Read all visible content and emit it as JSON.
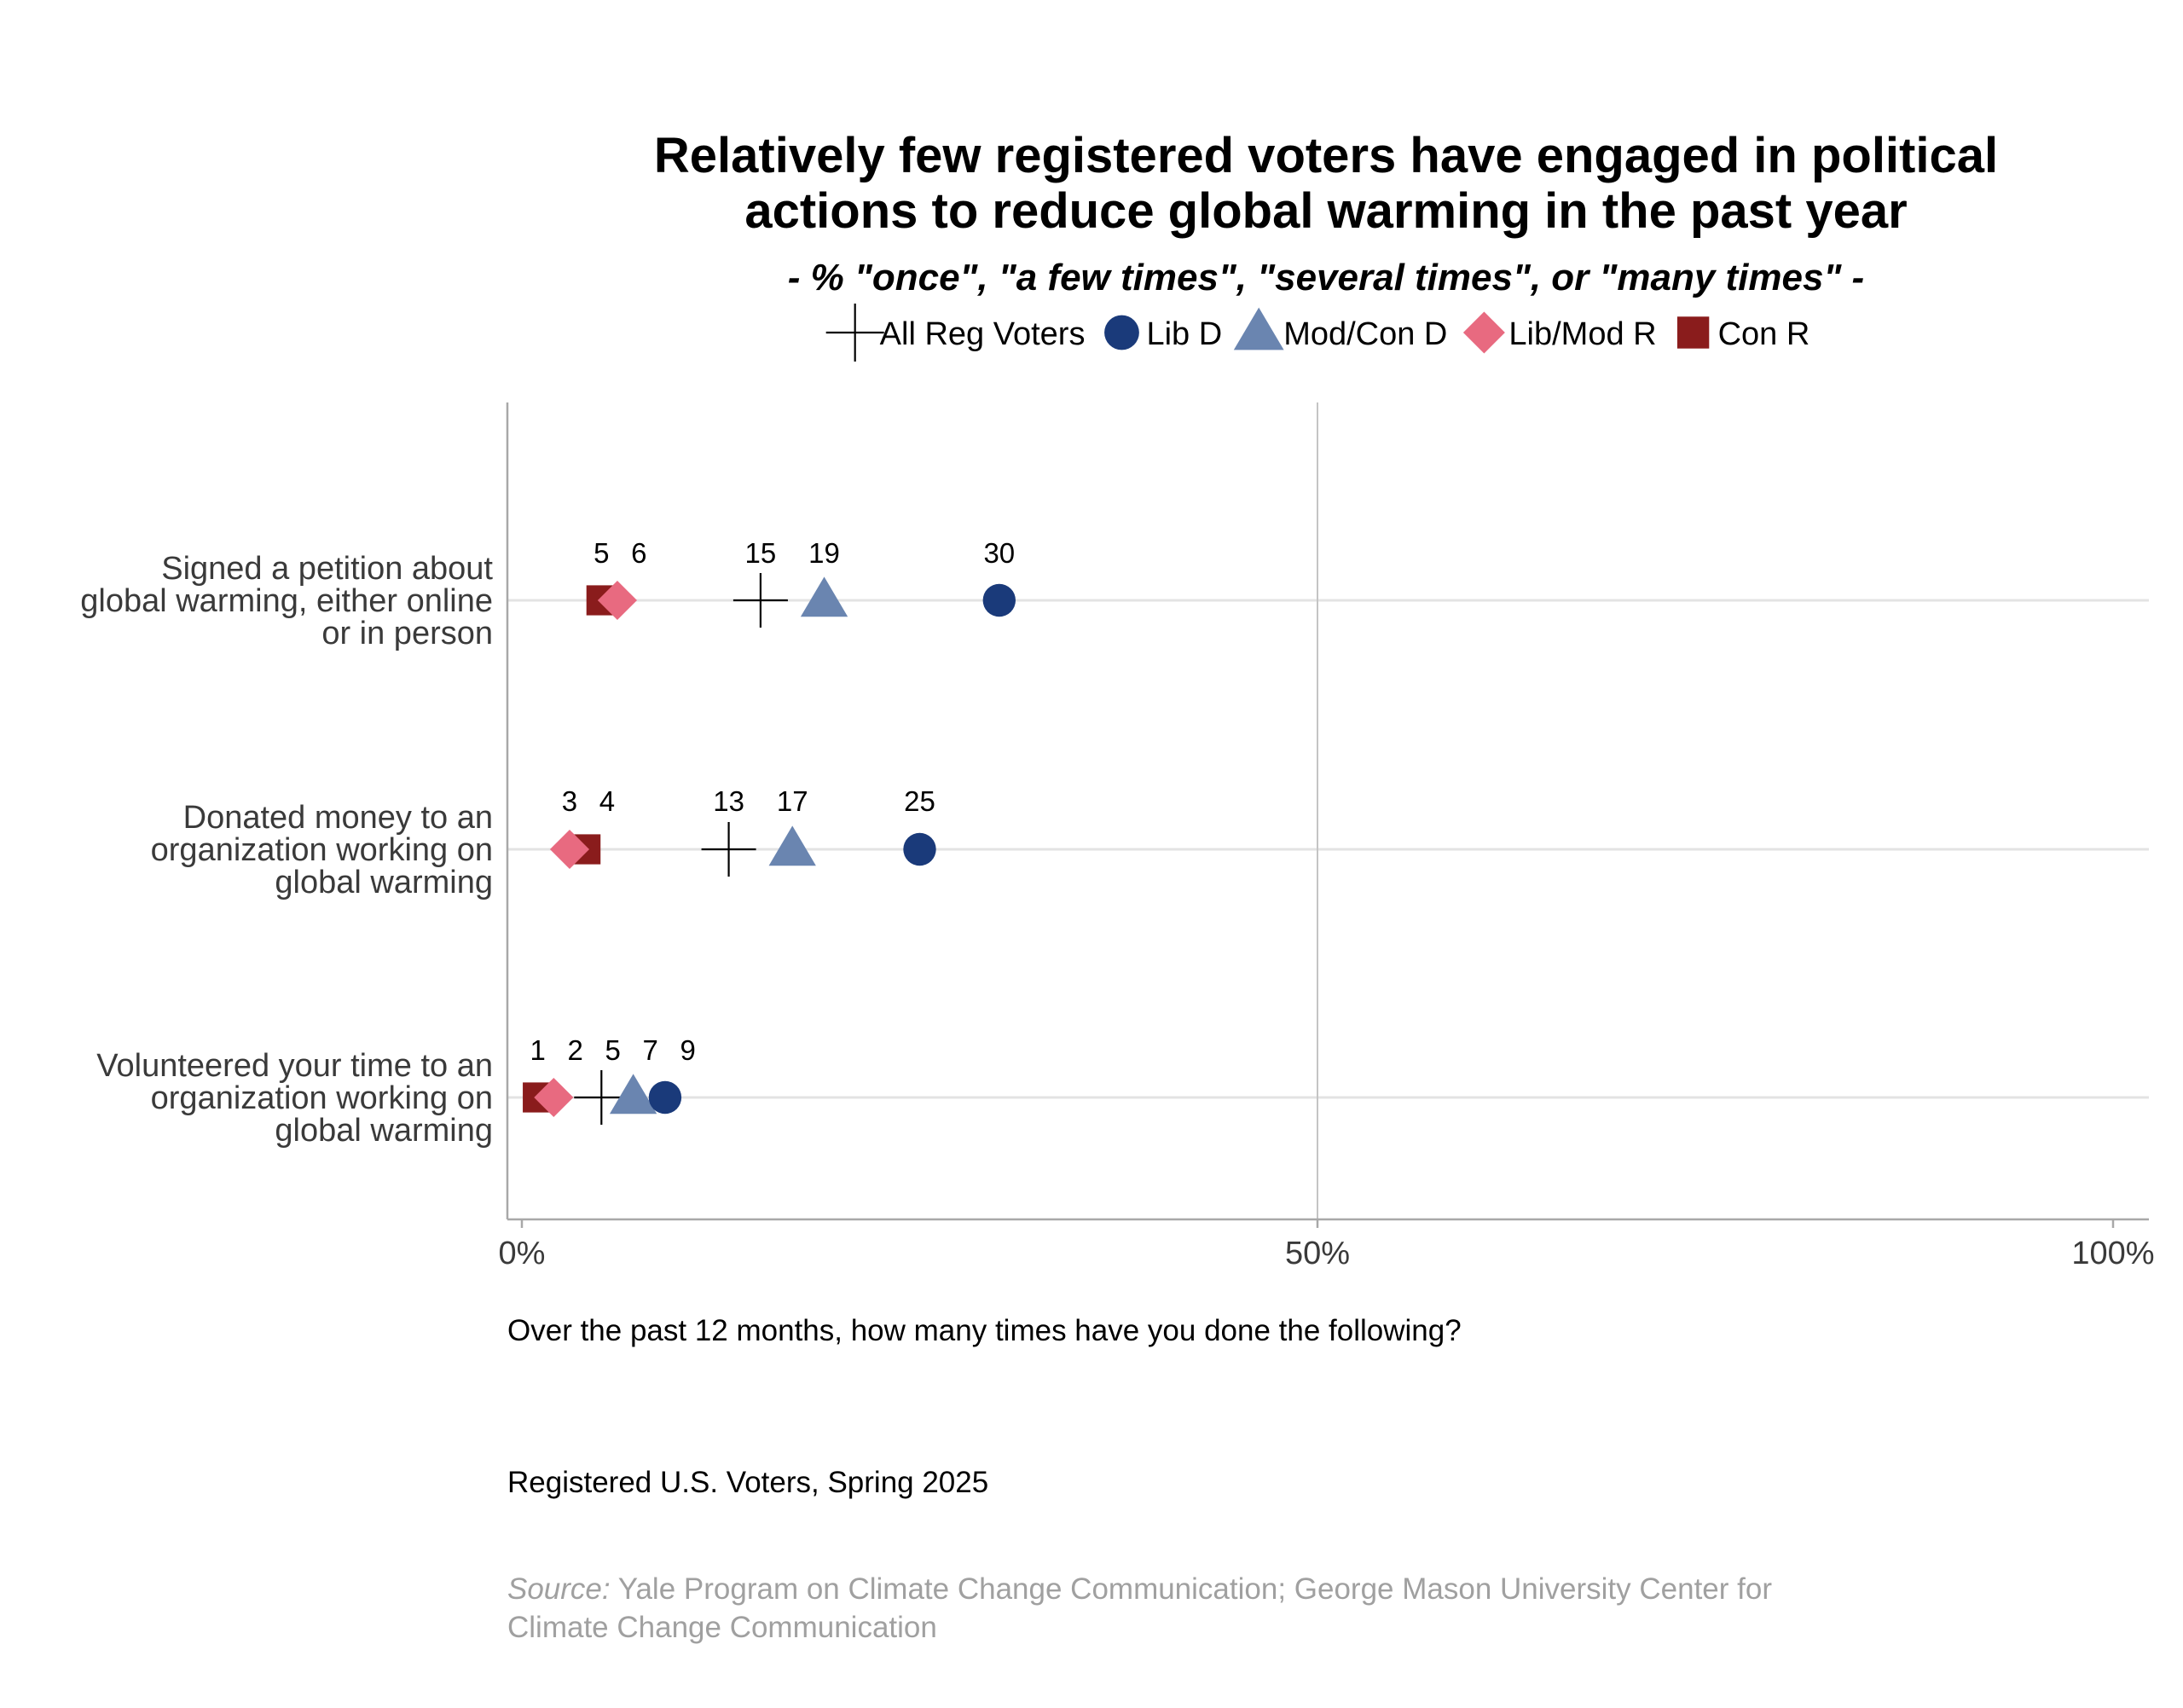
{
  "chart_data": {
    "type": "scatter",
    "title": "Relatively few registered voters have engaged in political actions to reduce global warming in the past year",
    "title_lines": [
      "Relatively few registered voters have engaged in political",
      "actions to reduce global warming in the past year"
    ],
    "subtitle": "- % \"once\", \"a few times\", \"several times\", or \"many times\" -",
    "legend_position": "top",
    "series": [
      {
        "name": "All Reg Voters",
        "shape": "cross",
        "color": "#000000",
        "values": [
          15,
          13,
          5
        ]
      },
      {
        "name": "Lib D",
        "shape": "circle",
        "color": "#1a3a7a",
        "values": [
          30,
          25,
          9
        ]
      },
      {
        "name": "Mod/Con D",
        "shape": "triangle",
        "color": "#6a85b0",
        "values": [
          19,
          17,
          7
        ]
      },
      {
        "name": "Lib/Mod R",
        "shape": "diamond",
        "color": "#e86a80",
        "values": [
          6,
          3,
          2
        ]
      },
      {
        "name": "Con R",
        "shape": "square",
        "color": "#8a1c1c",
        "values": [
          5,
          4,
          1
        ]
      }
    ],
    "categories": [
      {
        "label": "Signed a petition about global warming, either online or in person",
        "lines": [
          "Signed a petition about",
          "global warming, either online",
          "or in person"
        ]
      },
      {
        "label": "Donated money to an organization working on global warming",
        "lines": [
          "Donated money to an",
          "organization working on",
          "global warming"
        ]
      },
      {
        "label": "Volunteered your time to an organization working on global warming",
        "lines": [
          "Volunteered your time to an",
          "organization working on",
          "global warming"
        ]
      }
    ],
    "data_labels": [
      [
        "5",
        "6",
        "15",
        "19",
        "30"
      ],
      [
        "3",
        "4",
        "13",
        "17",
        "25"
      ],
      [
        "1",
        "2",
        "5",
        "7",
        "9"
      ]
    ],
    "xlim": [
      0,
      100
    ],
    "x_ticks": [
      0,
      50,
      100
    ],
    "x_tick_labels": [
      "0%",
      "50%",
      "100%"
    ],
    "grid": true,
    "question": "Over the past 12 months, how many times have you done the following?",
    "population": "Registered U.S. Voters, Spring 2025",
    "source_prefix": "Source:",
    "source_lines": [
      "Source: Yale Program on Climate Change Communication; George Mason University Center for",
      "Climate Change Communication"
    ]
  }
}
